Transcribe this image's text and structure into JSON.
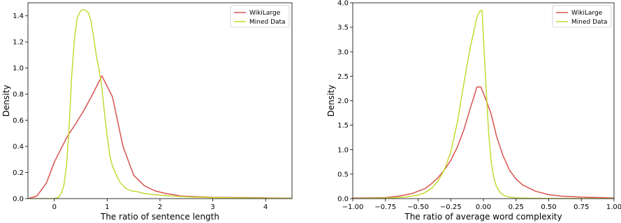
{
  "chart_data": [
    {
      "type": "line",
      "xlabel": "The ratio of sentence length",
      "ylabel": "Density",
      "xlim": [
        -0.5,
        4.5
      ],
      "ylim": [
        0,
        1.5
      ],
      "xticks": [
        0,
        1,
        2,
        3,
        4
      ],
      "yticks": [
        0.0,
        0.2,
        0.4,
        0.6,
        0.8,
        1.0,
        1.2,
        1.4
      ],
      "tick_labels_x": [
        "0",
        "1",
        "2",
        "3",
        "4"
      ],
      "tick_labels_y": [
        "0.0",
        "0.2",
        "0.4",
        "0.6",
        "0.8",
        "1.0",
        "1.2",
        "1.4"
      ],
      "legend_position": "top-right",
      "series": [
        {
          "name": "WikiLarge",
          "color": "#d9534f",
          "x": [
            -0.5,
            -0.33,
            -0.15,
            0.0,
            0.1,
            0.25,
            0.4,
            0.55,
            0.7,
            0.8,
            0.9,
            1.0,
            1.1,
            1.3,
            1.5,
            1.7,
            1.9,
            2.1,
            2.4,
            2.7,
            3.0,
            3.5,
            4.0,
            4.5
          ],
          "y": [
            0.0,
            0.02,
            0.12,
            0.28,
            0.36,
            0.48,
            0.57,
            0.67,
            0.78,
            0.86,
            0.94,
            0.86,
            0.78,
            0.4,
            0.18,
            0.1,
            0.06,
            0.04,
            0.02,
            0.015,
            0.01,
            0.008,
            0.005,
            0.003
          ]
        },
        {
          "name": "Mined Data",
          "color": "#c5d933",
          "x": [
            -0.5,
            0.0,
            0.08,
            0.13,
            0.18,
            0.23,
            0.28,
            0.33,
            0.38,
            0.43,
            0.5,
            0.55,
            0.6,
            0.65,
            0.7,
            0.75,
            0.8,
            0.85,
            0.9,
            0.95,
            1.0,
            1.05,
            1.1,
            1.15,
            1.25,
            1.35,
            1.45,
            1.55,
            1.7,
            1.9,
            2.2,
            2.6,
            3.0,
            3.5,
            4.0,
            4.5
          ],
          "y": [
            0.0,
            0.0,
            0.01,
            0.04,
            0.1,
            0.25,
            0.55,
            0.95,
            1.22,
            1.38,
            1.44,
            1.45,
            1.44,
            1.42,
            1.35,
            1.22,
            1.08,
            0.98,
            0.85,
            0.65,
            0.48,
            0.33,
            0.25,
            0.2,
            0.12,
            0.08,
            0.06,
            0.055,
            0.04,
            0.03,
            0.02,
            0.012,
            0.008,
            0.005,
            0.003,
            0.002
          ]
        }
      ]
    },
    {
      "type": "line",
      "xlabel": "The ratio of average word complexity",
      "ylabel": "Density",
      "xlim": [
        -1.0,
        1.0
      ],
      "ylim": [
        0,
        4.0
      ],
      "xticks": [
        -1.0,
        -0.75,
        -0.5,
        -0.25,
        0.0,
        0.25,
        0.5,
        0.75,
        1.0
      ],
      "yticks": [
        0.0,
        0.5,
        1.0,
        1.5,
        2.0,
        2.5,
        3.0,
        3.5,
        4.0
      ],
      "tick_labels_x": [
        "−1.00",
        "−0.75",
        "−0.50",
        "−0.25",
        "0.00",
        "0.25",
        "0.50",
        "0.75",
        "1.00"
      ],
      "tick_labels_y": [
        "0.0",
        "0.5",
        "1.0",
        "1.5",
        "2.0",
        "2.5",
        "3.0",
        "3.5",
        "4.0"
      ],
      "legend_position": "top-right",
      "series": [
        {
          "name": "WikiLarge",
          "color": "#d9534f",
          "x": [
            -1.0,
            -0.85,
            -0.75,
            -0.65,
            -0.55,
            -0.45,
            -0.4,
            -0.35,
            -0.3,
            -0.25,
            -0.2,
            -0.15,
            -0.1,
            -0.07,
            -0.05,
            -0.02,
            0.0,
            0.03,
            0.06,
            0.1,
            0.15,
            0.2,
            0.25,
            0.3,
            0.4,
            0.5,
            0.6,
            0.75,
            0.9,
            1.0
          ],
          "y": [
            0.01,
            0.015,
            0.02,
            0.05,
            0.1,
            0.2,
            0.3,
            0.42,
            0.58,
            0.78,
            1.05,
            1.4,
            1.85,
            2.1,
            2.28,
            2.28,
            2.15,
            1.95,
            1.72,
            1.28,
            0.88,
            0.58,
            0.4,
            0.28,
            0.15,
            0.08,
            0.05,
            0.03,
            0.02,
            0.01
          ]
        },
        {
          "name": "Mined Data",
          "color": "#c5d933",
          "x": [
            -1.0,
            -0.75,
            -0.6,
            -0.5,
            -0.45,
            -0.4,
            -0.35,
            -0.3,
            -0.25,
            -0.2,
            -0.15,
            -0.1,
            -0.07,
            -0.05,
            -0.03,
            -0.01,
            0.0,
            0.02,
            0.04,
            0.06,
            0.08,
            0.1,
            0.13,
            0.16,
            0.2,
            0.25,
            0.3,
            0.4,
            0.5,
            0.75,
            1.0
          ],
          "y": [
            0.0,
            0.01,
            0.03,
            0.07,
            0.12,
            0.2,
            0.35,
            0.58,
            0.95,
            1.55,
            2.35,
            3.1,
            3.45,
            3.7,
            3.82,
            3.85,
            3.3,
            2.3,
            1.35,
            0.75,
            0.42,
            0.25,
            0.12,
            0.06,
            0.03,
            0.015,
            0.01,
            0.005,
            0.003,
            0.001,
            0.0
          ]
        }
      ]
    }
  ]
}
